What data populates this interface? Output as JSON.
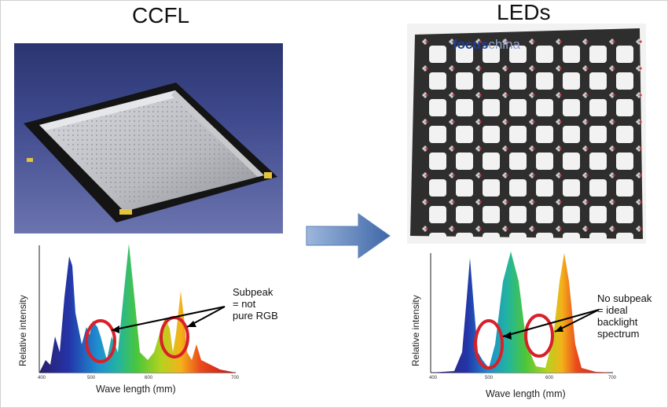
{
  "left": {
    "title": "CCFL",
    "chart": {
      "ylabel": "Relative intensity",
      "xlabel": "Wave length (mm)",
      "ticks": [
        "400",
        "500",
        "600",
        "700"
      ],
      "annotation": [
        "Subpeak",
        "= not",
        "pure RGB"
      ]
    }
  },
  "right": {
    "title": "LEDs",
    "watermark": {
      "brand": "focus",
      "suffix": "china"
    },
    "chart": {
      "ylabel": "Relative intensity",
      "xlabel": "Wave length (mm)",
      "ticks": [
        "400",
        "500",
        "600",
        "700"
      ],
      "annotation": [
        "No subpeak",
        "= ideal",
        "backlight",
        "spectrum"
      ]
    }
  },
  "colors": {
    "highlight_circle": "#d8202a",
    "arrow": "#4f79b8",
    "led_board": "#2e2e2e"
  }
}
